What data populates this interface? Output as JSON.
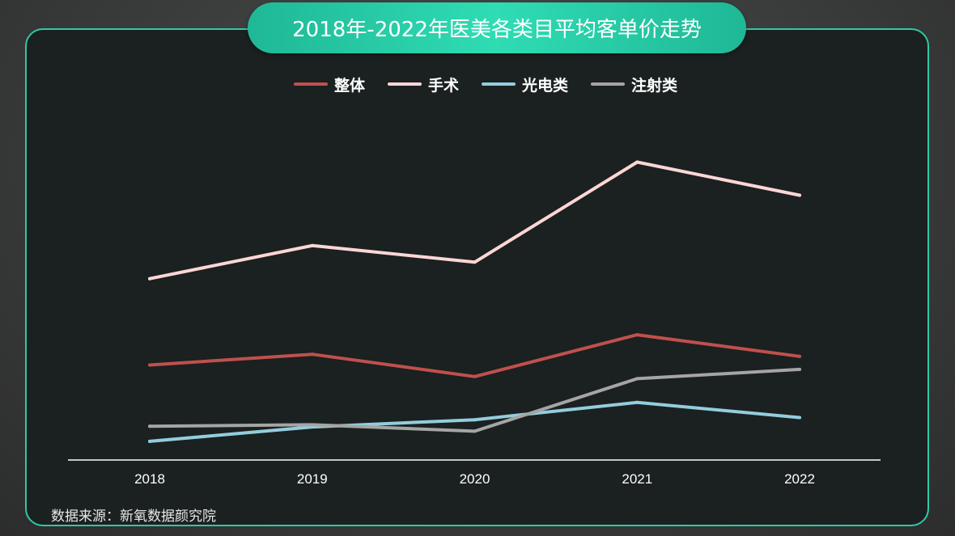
{
  "title": "2018年-2022年医美各类目平均客单价走势",
  "source": "数据来源：新氧数据颜究院",
  "chart_data": {
    "type": "line",
    "title": "2018年-2022年医美各类目平均客单价走势",
    "categories": [
      "2018",
      "2019",
      "2020",
      "2021",
      "2022"
    ],
    "series": [
      {
        "name": "整体",
        "color": "#c0504d",
        "values": [
          13.2,
          14.7,
          11.6,
          17.4,
          14.4
        ]
      },
      {
        "name": "手术",
        "color": "#ffd6d6",
        "values": [
          25.2,
          29.8,
          27.5,
          41.4,
          36.8
        ]
      },
      {
        "name": "光电类",
        "color": "#93cddd",
        "values": [
          2.6,
          4.6,
          5.6,
          8.0,
          5.9
        ]
      },
      {
        "name": "注射类",
        "color": "#a5a5a5",
        "values": [
          4.7,
          4.9,
          4.0,
          11.3,
          12.6
        ]
      }
    ],
    "ylim": [
      0,
      50
    ],
    "grid": false,
    "legend": "top-center",
    "xlabel": "",
    "ylabel": ""
  }
}
